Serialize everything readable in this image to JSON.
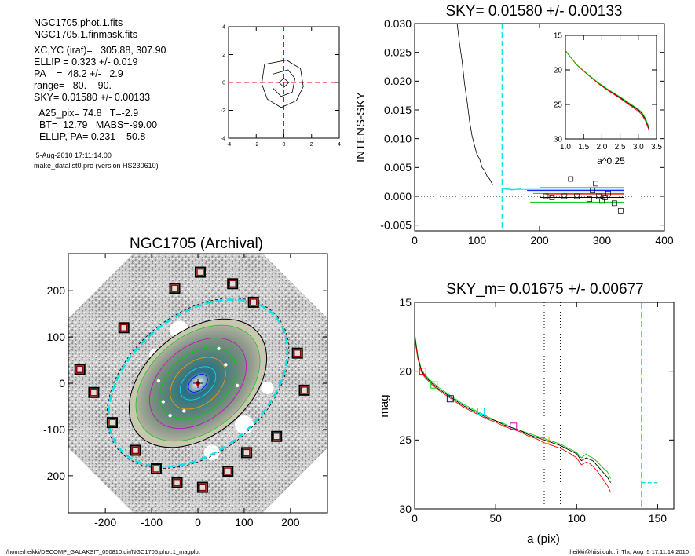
{
  "info": {
    "line1": "NGC1705.phot.1.fits",
    "line2": "NGC1705.1.finmask.fits",
    "line3": "XC,YC (iraf)=   305.88, 307.90",
    "line4": "ELLIP = 0.323 +/- 0.019",
    "line5": "PA    =  48.2 +/-   2.9",
    "line6": "range=   80.-   90.",
    "line7": "SKY= 0.01580 +/- 0.00133",
    "line8": "  A25_pix= 74.8   T=-2.9",
    "line9": "  BT=  12.79   MABS=-99.00",
    "line10": "  ELLIP, PA= 0.231    50.8",
    "date": " 5-Aug-2010 17:11:14.00",
    "program": "make_datalist0.pro (version HS230610)"
  },
  "footer": {
    "left": "/home/heikki/DECOMP_GALAKSIT_050810.dir/NGC1705.phot.1_magplot",
    "right": "heikki@hiisi.oulu.fi  Thu Aug  5 17:11:14 2010"
  },
  "colors": {
    "cyan": "#00e5ee",
    "red": "#ff0000",
    "green": "#00cc00",
    "blue": "#0000ff",
    "magenta": "#cc00cc",
    "orange": "#ff9900",
    "darkred": "#990000"
  },
  "chart_data": [
    {
      "type": "line",
      "name": "contour-thumbnail",
      "xlim": [
        -4,
        4
      ],
      "ylim": [
        -4,
        4
      ],
      "xticks": [
        "-4",
        "-2",
        "0",
        "2",
        "4"
      ],
      "yticks": [
        "-4",
        "-2",
        "0",
        "2",
        "4"
      ],
      "grid": false
    },
    {
      "type": "line",
      "title": "SKY= 0.01580 +/- 0.00133",
      "xlabel": "",
      "ylabel": "INTENS-SKY",
      "xlim": [
        0,
        400
      ],
      "ylim": [
        -0.006,
        0.03
      ],
      "xticks": [
        "0",
        "100",
        "200",
        "300",
        "400"
      ],
      "yticks": [
        "-0.005",
        "0.000",
        "0.005",
        "0.010",
        "0.015",
        "0.020",
        "0.025",
        "0.030"
      ],
      "profile_x": [
        68,
        72,
        76,
        80,
        84,
        88,
        92,
        96,
        100,
        104,
        108,
        112,
        116,
        120,
        125
      ],
      "profile_y": [
        0.03,
        0.0265,
        0.0235,
        0.0195,
        0.0165,
        0.013,
        0.0105,
        0.0088,
        0.0072,
        0.0065,
        0.005,
        0.0045,
        0.0035,
        0.003,
        0.002
      ],
      "sky_box_x": [
        210,
        220,
        240,
        250,
        260,
        280,
        285,
        290,
        295,
        300,
        305,
        310,
        320,
        330
      ],
      "sky_box_y": [
        0.0,
        -0.0002,
        0.0,
        0.003,
        0.0,
        -0.0005,
        0.001,
        0.0022,
        0.0,
        -0.0008,
        -0.0002,
        0.0005,
        -0.0012,
        -0.0025
      ],
      "range_line_x": 140,
      "inset": {
        "xlabel": "a^0.25",
        "xlim": [
          1.0,
          3.5
        ],
        "ylim": [
          30,
          15
        ],
        "xticks": [
          "1.0",
          "1.5",
          "2.0",
          "2.5",
          "3.0",
          "3.5"
        ],
        "yticks": [
          "15",
          "20",
          "25",
          "30"
        ]
      }
    },
    {
      "type": "scatter",
      "title": "NGC1705 (Archival)",
      "xlim": [
        -280,
        280
      ],
      "ylim": [
        -280,
        280
      ],
      "xticks": [
        "-200",
        "-100",
        "0",
        "100",
        "200"
      ],
      "yticks": [
        "-200",
        "-100",
        "0",
        "100",
        "200"
      ],
      "sky_boxes_x": [
        -255,
        -225,
        -185,
        -160,
        -135,
        -90,
        -50,
        -45,
        5,
        10,
        65,
        75,
        105,
        120,
        170,
        215,
        230
      ],
      "sky_boxes_y": [
        30,
        -20,
        -85,
        120,
        -145,
        -185,
        205,
        -215,
        240,
        -225,
        -190,
        215,
        -150,
        175,
        -115,
        65,
        -15
      ]
    },
    {
      "type": "line",
      "title": "SKY_m=  0.01675 +/- 0.00677",
      "xlabel": "a (pix)",
      "ylabel": "mag",
      "xlim": [
        0,
        160
      ],
      "ylim": [
        30,
        15
      ],
      "xticks": [
        "0",
        "50",
        "100",
        "150"
      ],
      "yticks": [
        "15",
        "20",
        "25",
        "30"
      ],
      "x": [
        0,
        2,
        4,
        6,
        10,
        15,
        20,
        25,
        30,
        35,
        40,
        45,
        50,
        55,
        60,
        65,
        70,
        75,
        80,
        85,
        90,
        95,
        100,
        103,
        106,
        108,
        110,
        113,
        116,
        119,
        121
      ],
      "series": [
        {
          "color": "green",
          "values": [
            17.2,
            18.9,
            19.8,
            20.2,
            20.7,
            21.2,
            21.6,
            22.0,
            22.4,
            22.7,
            23.0,
            23.3,
            23.6,
            23.8,
            24.1,
            24.3,
            24.5,
            24.7,
            24.9,
            25.1,
            25.3,
            25.6,
            25.9,
            26.3,
            26.0,
            26.2,
            26.3,
            26.6,
            27.0,
            27.3,
            27.8
          ]
        },
        {
          "color": "black",
          "values": [
            17.4,
            19.0,
            19.9,
            20.3,
            20.8,
            21.3,
            21.7,
            22.1,
            22.5,
            22.8,
            23.1,
            23.4,
            23.6,
            23.9,
            24.1,
            24.3,
            24.6,
            24.8,
            25.0,
            25.2,
            25.4,
            25.7,
            26.0,
            26.5,
            26.3,
            26.4,
            26.5,
            26.9,
            27.3,
            27.7,
            28.1
          ]
        },
        {
          "color": "red",
          "values": [
            17.6,
            19.1,
            20.0,
            20.4,
            20.9,
            21.4,
            21.8,
            22.2,
            22.6,
            22.9,
            23.2,
            23.5,
            23.7,
            24.0,
            24.2,
            24.4,
            24.7,
            24.9,
            25.2,
            25.4,
            25.6,
            25.9,
            26.3,
            26.8,
            26.6,
            26.7,
            26.9,
            27.3,
            27.8,
            28.3,
            28.8
          ]
        }
      ],
      "markers_x": [
        5,
        12,
        22,
        41,
        61,
        81
      ],
      "markers_y": [
        20.0,
        21.0,
        22.0,
        22.9,
        24.0,
        25.0
      ],
      "vlines_x": [
        80,
        90
      ],
      "sky_line": {
        "x1": 140,
        "x2": 150,
        "y": 28.1
      },
      "grid": false
    }
  ]
}
